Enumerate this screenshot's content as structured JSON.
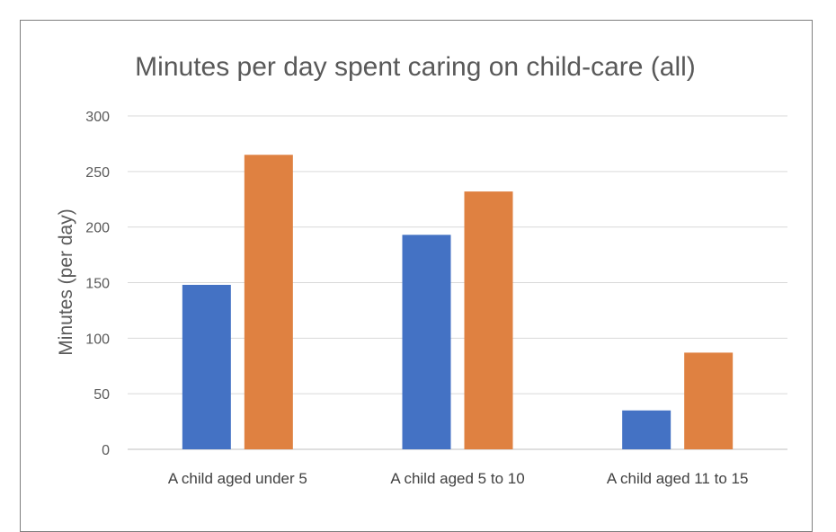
{
  "chart_data": {
    "type": "bar",
    "title": "Minutes per day spent caring on child-care (all)",
    "xlabel": "",
    "ylabel": "Minutes (per day)",
    "ylim": [
      0,
      300
    ],
    "yticks": [
      0,
      50,
      100,
      150,
      200,
      250,
      300
    ],
    "grid": true,
    "categories": [
      "A child aged under 5",
      "A child aged 5 to 10",
      "A child aged 11 to 15"
    ],
    "series": [
      {
        "color": "#4472c4",
        "values": [
          148,
          193,
          35
        ]
      },
      {
        "color": "#df8141",
        "values": [
          265,
          232,
          87
        ]
      }
    ]
  }
}
